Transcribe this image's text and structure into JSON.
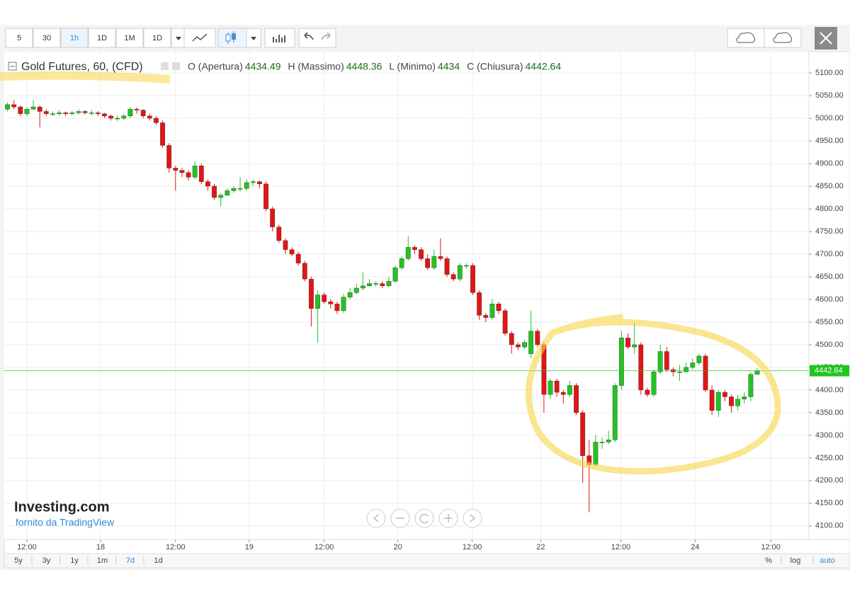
{
  "toolbar": {
    "intervals": [
      "5",
      "30",
      "1h",
      "1D",
      "1M",
      "1D"
    ]
  },
  "range_buttons": [
    "5y",
    "3y",
    "1y",
    "1m",
    "7d",
    "1d"
  ],
  "scale_buttons": [
    "%",
    "log",
    "auto"
  ],
  "watermark": {
    "brand": "Investing.com",
    "provider": "fornito da TradingView"
  },
  "chart_data": {
    "type": "candlestick",
    "title": "Gold Futures, 60, (CFD)",
    "ohlc_labels": [
      "O (Apertura)",
      "H (Massimo)",
      "L (Minimo)",
      "C (Chiusura)"
    ],
    "up_color": "#22c422",
    "down_color": "#e41414",
    "last_price_color": "#22c422",
    "grid": true,
    "open": [
      5020,
      5030,
      5025,
      5010,
      5020,
      5025,
      5015,
      5010,
      5010,
      5012,
      5010,
      5012,
      5015,
      5012,
      5012,
      5010,
      5005,
      5000,
      5000,
      5005,
      5020,
      5018,
      5005,
      5000,
      4990,
      4940,
      4890,
      4885,
      4880,
      4870,
      4895,
      4860,
      4850,
      4825,
      4830,
      4840,
      4845,
      4845,
      4858,
      4860,
      4855,
      4800,
      4760,
      4730,
      4710,
      4700,
      4680,
      4645,
      4580,
      4610,
      4595,
      4590,
      4575,
      4605,
      4615,
      4625,
      4630,
      4635,
      4635,
      4630,
      4640,
      4670,
      4690,
      4715,
      4710,
      4690,
      4670,
      4695,
      4690,
      4655,
      4645,
      4675,
      4675,
      4615,
      4565,
      4560,
      4590,
      4575,
      4525,
      4500,
      4495,
      4480,
      4530,
      4500,
      4390,
      4420,
      4395,
      4390,
      4410,
      4350,
      4255,
      4235,
      4285,
      4285,
      4290,
      4410,
      4515,
      4495,
      4500,
      4400,
      4390,
      4440,
      4485,
      4445,
      4440,
      4440,
      4450,
      4460,
      4475,
      4400,
      4355,
      4395,
      4385,
      4365,
      4380,
      4385,
      4434.49
    ],
    "high": [
      5035,
      5040,
      5028,
      5025,
      5040,
      5028,
      5020,
      5015,
      5018,
      5015,
      5016,
      5020,
      5018,
      5018,
      5016,
      5012,
      5008,
      5006,
      5010,
      5025,
      5024,
      5020,
      5010,
      5005,
      4995,
      4945,
      4895,
      4890,
      4885,
      4905,
      4900,
      4865,
      4855,
      4835,
      4845,
      4850,
      4870,
      4865,
      4865,
      4862,
      4860,
      4805,
      4765,
      4735,
      4715,
      4705,
      4685,
      4650,
      4620,
      4615,
      4600,
      4595,
      4612,
      4625,
      4635,
      4660,
      4645,
      4640,
      4640,
      4650,
      4675,
      4695,
      4740,
      4720,
      4715,
      4700,
      4710,
      4735,
      4695,
      4660,
      4680,
      4680,
      4680,
      4620,
      4570,
      4600,
      4595,
      4580,
      4530,
      4505,
      4510,
      4575,
      4535,
      4505,
      4425,
      4425,
      4400,
      4420,
      4415,
      4355,
      4290,
      4300,
      4295,
      4310,
      4415,
      4530,
      4525,
      4550,
      4505,
      4405,
      4445,
      4500,
      4495,
      4450,
      4455,
      4460,
      4470,
      4480,
      4480,
      4410,
      4400,
      4400,
      4390,
      4390,
      4395,
      4440,
      4448.36
    ],
    "low": [
      5015,
      5020,
      5005,
      5005,
      5018,
      4980,
      5005,
      5005,
      5006,
      5005,
      5006,
      5008,
      5008,
      5006,
      5005,
      5000,
      4995,
      4994,
      4996,
      5000,
      5010,
      5000,
      4995,
      4985,
      4935,
      4880,
      4840,
      4870,
      4862,
      4865,
      4855,
      4840,
      4820,
      4805,
      4828,
      4835,
      4838,
      4840,
      4850,
      4845,
      4795,
      4750,
      4725,
      4700,
      4695,
      4675,
      4640,
      4540,
      4505,
      4590,
      4580,
      4568,
      4570,
      4600,
      4612,
      4620,
      4628,
      4628,
      4625,
      4628,
      4638,
      4665,
      4685,
      4700,
      4685,
      4665,
      4665,
      4685,
      4650,
      4640,
      4640,
      4668,
      4610,
      4555,
      4550,
      4555,
      4568,
      4520,
      4480,
      4488,
      4490,
      4470,
      4495,
      4350,
      4380,
      4385,
      4370,
      4385,
      4345,
      4195,
      4130,
      4230,
      4270,
      4280,
      4285,
      4400,
      4490,
      4480,
      4390,
      4385,
      4385,
      4435,
      4440,
      4430,
      4420,
      4440,
      4445,
      4455,
      4395,
      4345,
      4340,
      4375,
      4350,
      4355,
      4370,
      4375,
      4434
    ],
    "close": [
      5030,
      5025,
      5010,
      5020,
      5025,
      5015,
      5010,
      5010,
      5012,
      5010,
      5012,
      5015,
      5012,
      5012,
      5010,
      5005,
      5000,
      5000,
      5005,
      5020,
      5018,
      5005,
      5000,
      4990,
      4940,
      4890,
      4885,
      4880,
      4870,
      4895,
      4860,
      4850,
      4825,
      4830,
      4840,
      4845,
      4845,
      4858,
      4860,
      4855,
      4800,
      4760,
      4730,
      4710,
      4700,
      4680,
      4645,
      4580,
      4610,
      4595,
      4590,
      4575,
      4605,
      4615,
      4625,
      4630,
      4635,
      4635,
      4630,
      4640,
      4670,
      4690,
      4715,
      4710,
      4690,
      4670,
      4695,
      4690,
      4655,
      4645,
      4675,
      4675,
      4615,
      4565,
      4560,
      4590,
      4575,
      4525,
      4500,
      4495,
      4505,
      4530,
      4500,
      4390,
      4420,
      4395,
      4390,
      4410,
      4350,
      4255,
      4235,
      4285,
      4285,
      4290,
      4410,
      4515,
      4495,
      4500,
      4400,
      4390,
      4440,
      4485,
      4445,
      4440,
      4440,
      4450,
      4460,
      4475,
      4400,
      4355,
      4395,
      4385,
      4365,
      4380,
      4385,
      4434.49,
      4442.64
    ],
    "xlim": [
      -0.5,
      124
    ],
    "xticks": [
      {
        "value": 3.0,
        "label": "12:00"
      },
      {
        "value": 14.4,
        "label": "18"
      },
      {
        "value": 26.0,
        "label": "12:00"
      },
      {
        "value": 37.4,
        "label": "19"
      },
      {
        "value": 49.0,
        "label": "12:00"
      },
      {
        "value": 60.4,
        "label": "20"
      },
      {
        "value": 71.9,
        "label": "12:00"
      },
      {
        "value": 82.5,
        "label": "22"
      },
      {
        "value": 94.9,
        "label": "12:00"
      },
      {
        "value": 106.4,
        "label": "24"
      },
      {
        "value": 118.1,
        "label": "12:00"
      }
    ],
    "ylim": [
      4070,
      5147
    ],
    "yticks": [
      {
        "value": 4100,
        "label": "4100.00"
      },
      {
        "value": 4150,
        "label": "4150.00"
      },
      {
        "value": 4200,
        "label": "4200.00"
      },
      {
        "value": 4250,
        "label": "4250.00"
      },
      {
        "value": 4300,
        "label": "4300.00"
      },
      {
        "value": 4350,
        "label": "4350.00"
      },
      {
        "value": 4400,
        "label": "4400.00"
      },
      {
        "value": 4450,
        "label": "4450.00"
      },
      {
        "value": 4500,
        "label": "4500.00"
      },
      {
        "value": 4550,
        "label": "4550.00"
      },
      {
        "value": 4600,
        "label": "4600.00"
      },
      {
        "value": 4650,
        "label": "4650.00"
      },
      {
        "value": 4700,
        "label": "4700.00"
      },
      {
        "value": 4750,
        "label": "4750.00"
      },
      {
        "value": 4800,
        "label": "4800.00"
      },
      {
        "value": 4850,
        "label": "4850.00"
      },
      {
        "value": 4900,
        "label": "4900.00"
      },
      {
        "value": 4950,
        "label": "4950.00"
      },
      {
        "value": 5000,
        "label": "5000.00"
      },
      {
        "value": 5050,
        "label": "5050.00"
      },
      {
        "value": 5100,
        "label": "5100.00"
      }
    ]
  }
}
